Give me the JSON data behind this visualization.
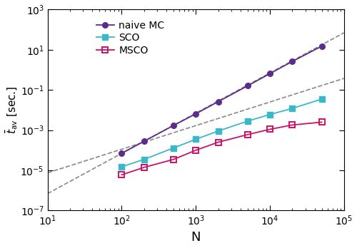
{
  "naive_MC_x": [
    100,
    200,
    500,
    1000,
    2000,
    5000,
    10000,
    20000,
    50000
  ],
  "naive_MC_y": [
    7e-05,
    0.00028,
    0.0017,
    0.0065,
    0.026,
    0.16,
    0.65,
    2.6,
    15.0
  ],
  "SCO_x": [
    100,
    200,
    500,
    1000,
    2000,
    5000,
    10000,
    20000,
    50000
  ],
  "SCO_y": [
    1.5e-05,
    3.5e-05,
    0.00013,
    0.00035,
    0.0009,
    0.0028,
    0.006,
    0.012,
    0.035
  ],
  "MSCO_x": [
    100,
    200,
    500,
    1000,
    2000,
    5000,
    10000,
    20000,
    50000
  ],
  "MSCO_y": [
    6e-06,
    1.4e-05,
    3.5e-05,
    0.0001,
    0.00025,
    0.0006,
    0.0011,
    0.0018,
    0.0025
  ],
  "naive_MC_color": "#5b2c8d",
  "SCO_color": "#3bb8c8",
  "MSCO_color": "#cc1166",
  "dashed_color": "#888888",
  "xlabel": "N",
  "ylabel": "$\\bar{t}_{\\mathrm{av}}$ [sec.]",
  "xlim": [
    10,
    100000
  ],
  "ylim": [
    1e-07,
    1000.0
  ],
  "legend_labels": [
    "naive MC",
    "SCO",
    "MSCO"
  ],
  "C_upper": 7e-09,
  "C_lower_factor": 3.26e-07,
  "figsize": [
    5.0,
    3.48
  ],
  "dpi": 100
}
